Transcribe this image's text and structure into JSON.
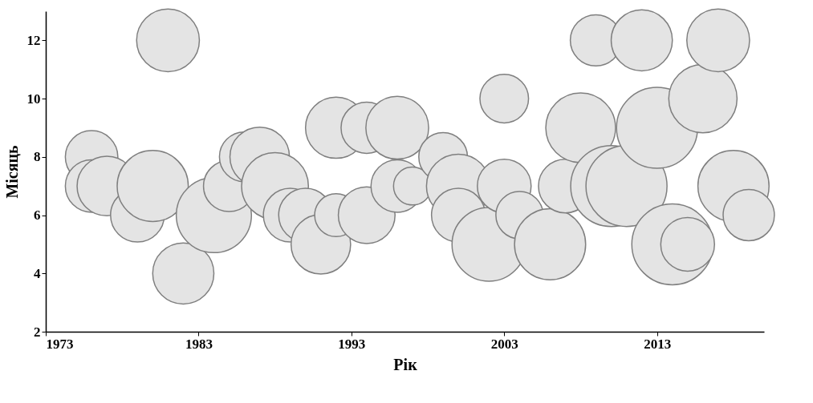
{
  "chart_data": {
    "type": "bubble",
    "xlabel": "Рік",
    "ylabel": "Місяць",
    "xlim": [
      1973,
      2020
    ],
    "xticks": [
      1973,
      1983,
      1993,
      2003,
      2013
    ],
    "ylim": [
      2,
      13
    ],
    "yticks": [
      2,
      4,
      6,
      8,
      10,
      12
    ],
    "grid": false,
    "series": [
      {
        "color": "#e4e4e4",
        "x": [
          1976,
          1976,
          1977,
          1979,
          1980,
          1981,
          1982,
          1984,
          1985,
          1986,
          1987,
          1988,
          1989,
          1990,
          1991,
          1992,
          1992,
          1994,
          1994,
          1996,
          1996,
          1997,
          1999,
          2000,
          2000,
          2002,
          2003,
          2003,
          2004,
          2006,
          2007,
          2008,
          2009,
          2010,
          2011,
          2012,
          2013,
          2014,
          2015,
          2016,
          2017,
          2018,
          2019
        ],
        "values": [
          8,
          7,
          7,
          6,
          7,
          12,
          4,
          6,
          7,
          8,
          8,
          7,
          6,
          6,
          5,
          6,
          9,
          6,
          9,
          9,
          7,
          7,
          8,
          7,
          6,
          5,
          10,
          7,
          6,
          5,
          7,
          9,
          12,
          7,
          7,
          12,
          9,
          5,
          5,
          10,
          12,
          7,
          6
        ],
        "sizes": [
          0.42,
          0.42,
          0.54,
          0.44,
          0.77,
          0.6,
          0.57,
          0.86,
          0.4,
          0.38,
          0.54,
          0.68,
          0.44,
          0.44,
          0.54,
          0.28,
          0.57,
          0.49,
          0.4,
          0.6,
          0.42,
          0.22,
          0.36,
          0.62,
          0.44,
          0.83,
          0.36,
          0.44,
          0.34,
          0.77,
          0.44,
          0.74,
          0.4,
          1,
          1,
          0.57,
          1,
          1,
          0.44,
          0.71,
          0.6,
          0.77,
          0.4
        ]
      }
    ]
  }
}
